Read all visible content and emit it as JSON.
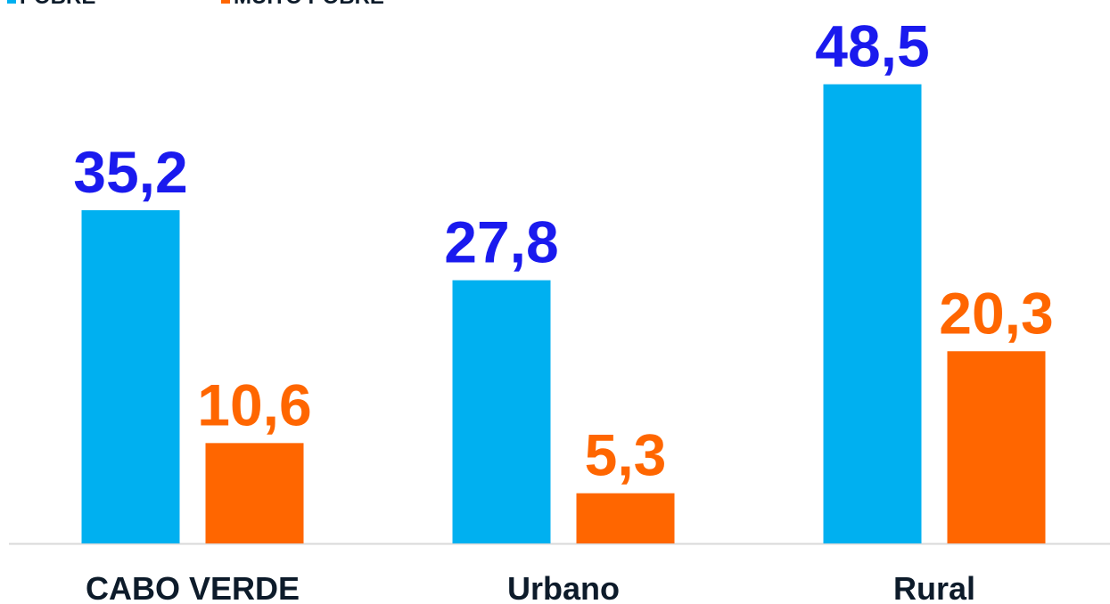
{
  "chart_data": {
    "type": "bar",
    "categories": [
      "CABO VERDE",
      "Urbano",
      "Rural"
    ],
    "series": [
      {
        "name": "POBRE",
        "color": "#00b0f0",
        "label_color": "#1a1aee",
        "values": [
          35.2,
          27.8,
          48.5
        ],
        "value_labels": [
          "35,2",
          "27,8",
          "48,5"
        ]
      },
      {
        "name": "MUITO POBRE",
        "color": "#ff6600",
        "label_color": "#ff6600",
        "values": [
          10.6,
          5.3,
          20.3
        ],
        "value_labels": [
          "10,6",
          "5,3",
          "20,3"
        ]
      }
    ],
    "ylim": [
      0,
      57.4
    ],
    "grid": false,
    "legend": "top-left"
  }
}
